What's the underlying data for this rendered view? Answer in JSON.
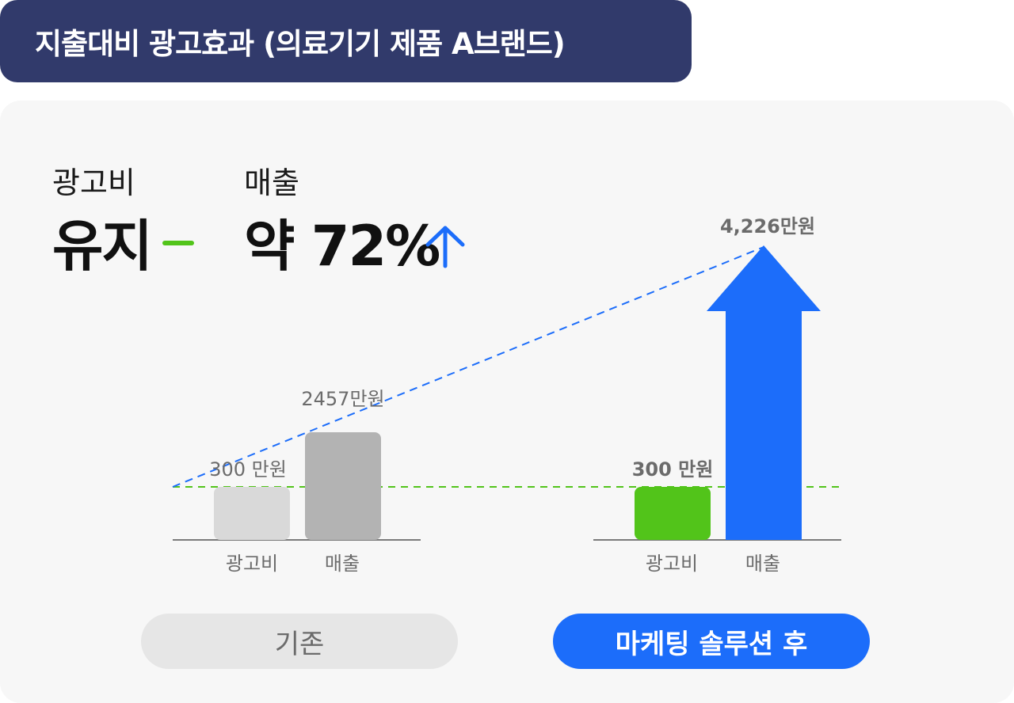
{
  "title": "지출대비 광고효과 (의료기기 제품 A브랜드)",
  "summary": {
    "ad_label": "광고비",
    "ad_value": "유지",
    "sales_label": "매출",
    "sales_value": "약 72%"
  },
  "chart_data": {
    "type": "bar",
    "ylim": [
      0,
      4226
    ],
    "groups": [
      {
        "name": "기존",
        "categories": [
          "광고비",
          "매출"
        ],
        "values": [
          300,
          2457
        ],
        "value_labels": [
          "300 만원",
          "2457만원"
        ]
      },
      {
        "name": "마케팅 솔루션 후",
        "categories": [
          "광고비",
          "매출"
        ],
        "values": [
          300,
          4226
        ],
        "value_labels": [
          "300 만원",
          "4,226만원"
        ]
      }
    ]
  },
  "buttons": {
    "before": "기존",
    "after": "마케팅 솔루션 후"
  },
  "colors": {
    "title_bg": "#313a6b",
    "ad_before": "#d9d9d9",
    "sales_before": "#b3b3b3",
    "ad_after": "#52c41a",
    "sales_after": "#1c6dfa",
    "trend_line": "#1c6dfa",
    "baseline_line": "#52c41a"
  }
}
